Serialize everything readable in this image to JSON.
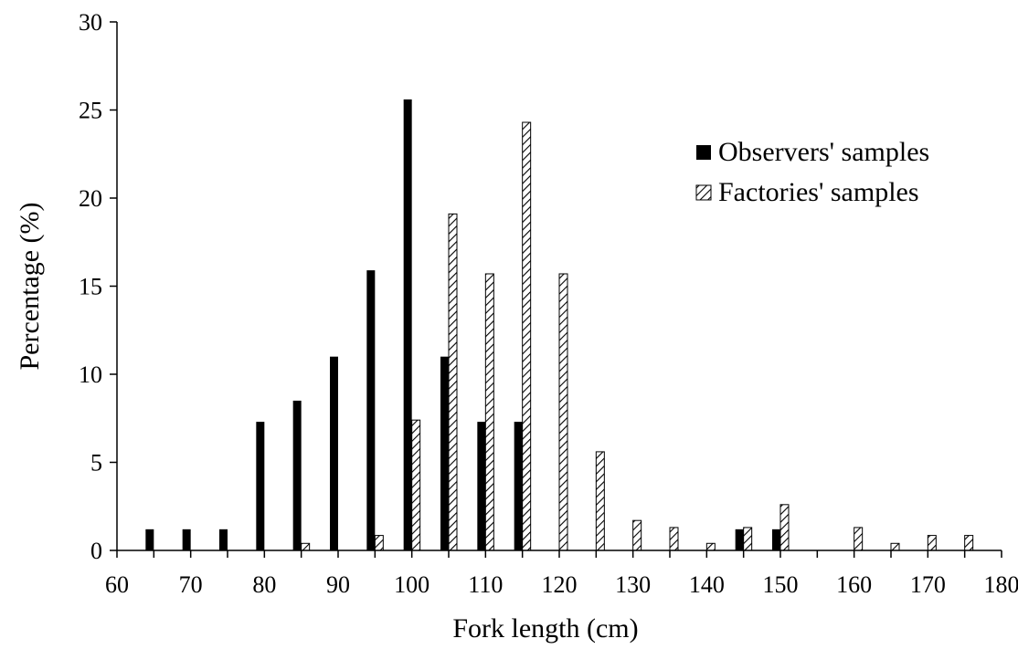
{
  "chart_data": {
    "type": "bar",
    "xlabel": "Fork length (cm)",
    "ylabel": "Percentage (%)",
    "ylim": [
      0,
      30
    ],
    "xlim": [
      60,
      180
    ],
    "yticks": [
      "0",
      "5",
      "10",
      "15",
      "20",
      "25",
      "30"
    ],
    "xticks": [
      "60",
      "70",
      "80",
      "90",
      "100",
      "110",
      "120",
      "130",
      "140",
      "150",
      "160",
      "170",
      "180"
    ],
    "legend_position": "top-right",
    "series": [
      {
        "name": "Observers' samples",
        "color": "#000000",
        "fill": "solid",
        "x": [
          65,
          70,
          75,
          80,
          85,
          90,
          95,
          100,
          105,
          110,
          115,
          145,
          150
        ],
        "values": [
          1.2,
          1.2,
          1.2,
          7.3,
          8.5,
          11.0,
          15.9,
          25.6,
          11.0,
          7.3,
          7.3,
          1.2,
          1.2
        ]
      },
      {
        "name": "Factories' samples",
        "color": "#000000",
        "fill": "diagonal-hatch",
        "x": [
          85,
          95,
          100,
          105,
          110,
          115,
          120,
          125,
          130,
          135,
          140,
          145,
          150,
          160,
          165,
          170,
          175
        ],
        "values": [
          0.4,
          0.85,
          7.4,
          19.1,
          15.7,
          24.3,
          15.7,
          5.6,
          1.7,
          1.3,
          0.4,
          1.3,
          2.6,
          1.3,
          0.4,
          0.85,
          0.85
        ]
      }
    ]
  }
}
